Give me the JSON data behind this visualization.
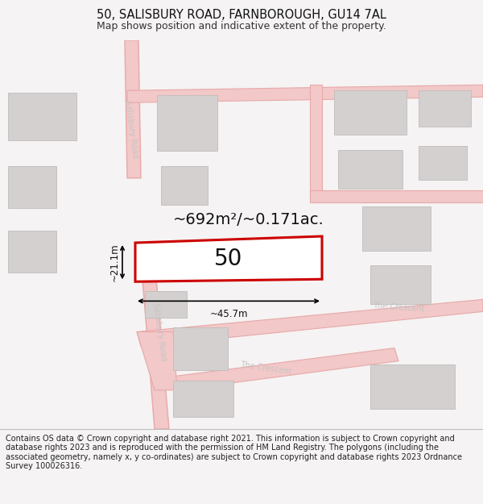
{
  "title": "50, SALISBURY ROAD, FARNBOROUGH, GU14 7AL",
  "subtitle": "Map shows position and indicative extent of the property.",
  "footer": "Contains OS data © Crown copyright and database right 2021. This information is subject to Crown copyright and database rights 2023 and is reproduced with the permission of HM Land Registry. The polygons (including the associated geometry, namely x, y co-ordinates) are subject to Crown copyright and database rights 2023 Ordnance Survey 100026316.",
  "bg_color": "#f5f3f3",
  "map_bg": "#f0eeee",
  "road_color": "#f2c8c8",
  "road_border_color": "#e8a8a8",
  "building_color": "#d4d0d0",
  "building_border_color": "#c0bcbc",
  "highlight_color": "#cc0000",
  "area_text": "~692m²/~0.171ac.",
  "property_number": "50",
  "dim_width": "~45.7m",
  "dim_height": "~21.1m",
  "road_label_color": "#c8c4c4",
  "title_fontsize": 10.5,
  "subtitle_fontsize": 9,
  "footer_fontsize": 7,
  "area_fontsize": 14,
  "number_fontsize": 20,
  "dim_fontsize": 8.5,
  "road_label_fontsize": 7
}
